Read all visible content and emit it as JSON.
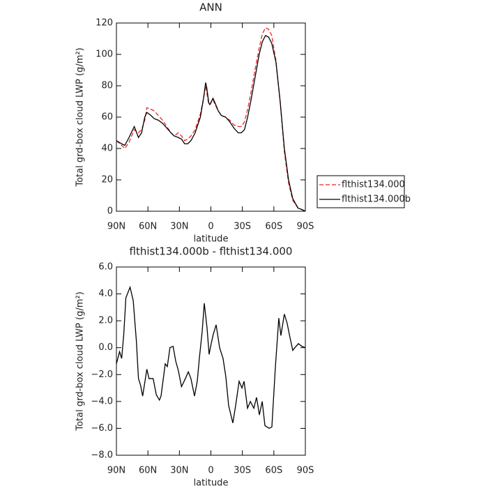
{
  "chart_data": [
    {
      "type": "line",
      "title": "ANN",
      "xlabel": "latitude",
      "ylabel": "Total grd-box cloud LWP (g/m²)",
      "x": [
        90,
        85,
        82,
        78,
        73,
        69,
        66,
        63,
        61,
        57,
        54,
        50,
        46,
        42,
        38,
        35,
        31,
        28,
        25,
        22,
        19,
        15,
        10,
        7,
        5,
        4,
        2,
        1,
        -2,
        -4,
        -7,
        -10,
        -14,
        -18,
        -22,
        -26,
        -29,
        -32,
        -35,
        -38,
        -42,
        -46,
        -49,
        -52,
        -55,
        -58,
        -62,
        -66,
        -70,
        -74,
        -78,
        -83,
        -87,
        -90
      ],
      "series": [
        {
          "name": "flthist134.000",
          "color": "#e8262a",
          "linestyle": "dashed",
          "values": [
            45,
            42,
            40,
            44,
            52,
            50,
            52,
            58,
            66,
            65,
            64,
            61,
            58,
            54,
            50,
            48,
            50,
            48,
            45,
            46,
            48,
            52,
            62,
            72,
            80,
            76,
            68,
            68,
            71,
            68,
            64,
            61,
            60,
            58,
            55,
            54,
            54,
            57,
            65,
            75,
            90,
            104,
            113,
            117,
            116,
            112,
            96,
            70,
            38,
            18,
            7,
            2,
            1,
            0
          ]
        },
        {
          "name": "flthist134.000b",
          "color": "#000000",
          "linestyle": "solid",
          "values": [
            45,
            43,
            42,
            47,
            54,
            47,
            50,
            60,
            63,
            61,
            59,
            58,
            56,
            53,
            50,
            48,
            47,
            46,
            43,
            43,
            45,
            50,
            60,
            72,
            82,
            79,
            69,
            68,
            72,
            69,
            64,
            61,
            60,
            57,
            53,
            50,
            50,
            52,
            60,
            70,
            85,
            100,
            108,
            112,
            111,
            107,
            95,
            70,
            40,
            20,
            8,
            2,
            1,
            0
          ]
        }
      ],
      "xlim": [
        90,
        -90
      ],
      "xticks": [
        {
          "value": 90,
          "label": "90N"
        },
        {
          "value": 60,
          "label": "60N"
        },
        {
          "value": 30,
          "label": "30N"
        },
        0,
        {
          "value": -30,
          "label": "30S"
        },
        {
          "value": -60,
          "label": "60S"
        },
        {
          "value": -90,
          "label": "90S"
        }
      ],
      "ylim": [
        0,
        120
      ],
      "yticks": [
        0,
        20,
        40,
        60,
        80,
        100,
        120
      ],
      "legend": "right"
    },
    {
      "type": "line",
      "title": "flthist134.000b - flthist134.000",
      "xlabel": "latitude",
      "ylabel": "Total grd-box cloud LWP (g/m²)",
      "x": [
        90,
        87,
        85,
        83,
        81,
        77,
        74,
        71,
        69,
        67,
        65,
        63,
        61,
        59,
        55,
        52,
        49,
        47.5,
        43.5,
        41.5,
        39,
        36,
        33.5,
        31,
        28,
        25.5,
        21.5,
        19,
        15.6,
        13,
        11,
        8.3,
        6.3,
        3.7,
        1.7,
        -0.3,
        -2.3,
        -5,
        -8.3,
        -11.6,
        -14.3,
        -16.9,
        -20.9,
        -23.6,
        -26.9,
        -29.6,
        -31.6,
        -34.9,
        -37.6,
        -40.9,
        -43.5,
        -46.2,
        -48.9,
        -51.5,
        -55.5,
        -58.1,
        -61.4,
        -64.7,
        -66.7,
        -70,
        -72.7,
        -74.7,
        -78,
        -80,
        -83.4,
        -86.7,
        -90
      ],
      "series": [
        {
          "color": "#000000",
          "linestyle": "solid",
          "values": [
            -1.2,
            -0.3,
            -0.8,
            1,
            3.7,
            4.5,
            3.5,
            0.5,
            -2.3,
            -2.8,
            -3.6,
            -2.6,
            -1.6,
            -2.3,
            -2.3,
            -3.5,
            -3.9,
            -3.6,
            -1.2,
            -1.4,
            0,
            0.1,
            -1,
            -1.7,
            -2.9,
            -2.5,
            -1.8,
            -2.3,
            -3.6,
            -2.5,
            -0.8,
            1.2,
            3.3,
            1.5,
            -0.5,
            0.3,
            1,
            1.7,
            0,
            -0.8,
            -2.2,
            -4.3,
            -5.6,
            -4.3,
            -2.5,
            -3,
            -2.5,
            -4.5,
            -4,
            -4.5,
            -3.7,
            -5,
            -4,
            -5.8,
            -6,
            -5.9,
            -1.5,
            2.2,
            0.9,
            2.5,
            1.8,
            1,
            -0.2,
            0,
            0.3,
            0.1,
            0
          ]
        }
      ],
      "xlim": [
        90,
        -90
      ],
      "xticks": [
        {
          "value": 90,
          "label": "90N"
        },
        {
          "value": 60,
          "label": "60N"
        },
        {
          "value": 30,
          "label": "30N"
        },
        0,
        {
          "value": -30,
          "label": "30S"
        },
        {
          "value": -60,
          "label": "60S"
        },
        {
          "value": -90,
          "label": "90S"
        }
      ],
      "ylim": [
        -8,
        6
      ],
      "yticks": [
        {
          "value": -8,
          "label": "−8.0"
        },
        {
          "value": -6,
          "label": "−6.0"
        },
        {
          "value": -4,
          "label": "−4.0"
        },
        {
          "value": -2,
          "label": "−2.0"
        },
        {
          "value": 0,
          "label": "0.0"
        },
        {
          "value": 2,
          "label": "2.0"
        },
        {
          "value": 4,
          "label": "4.0"
        },
        {
          "value": 6,
          "label": "6.0"
        }
      ]
    }
  ]
}
